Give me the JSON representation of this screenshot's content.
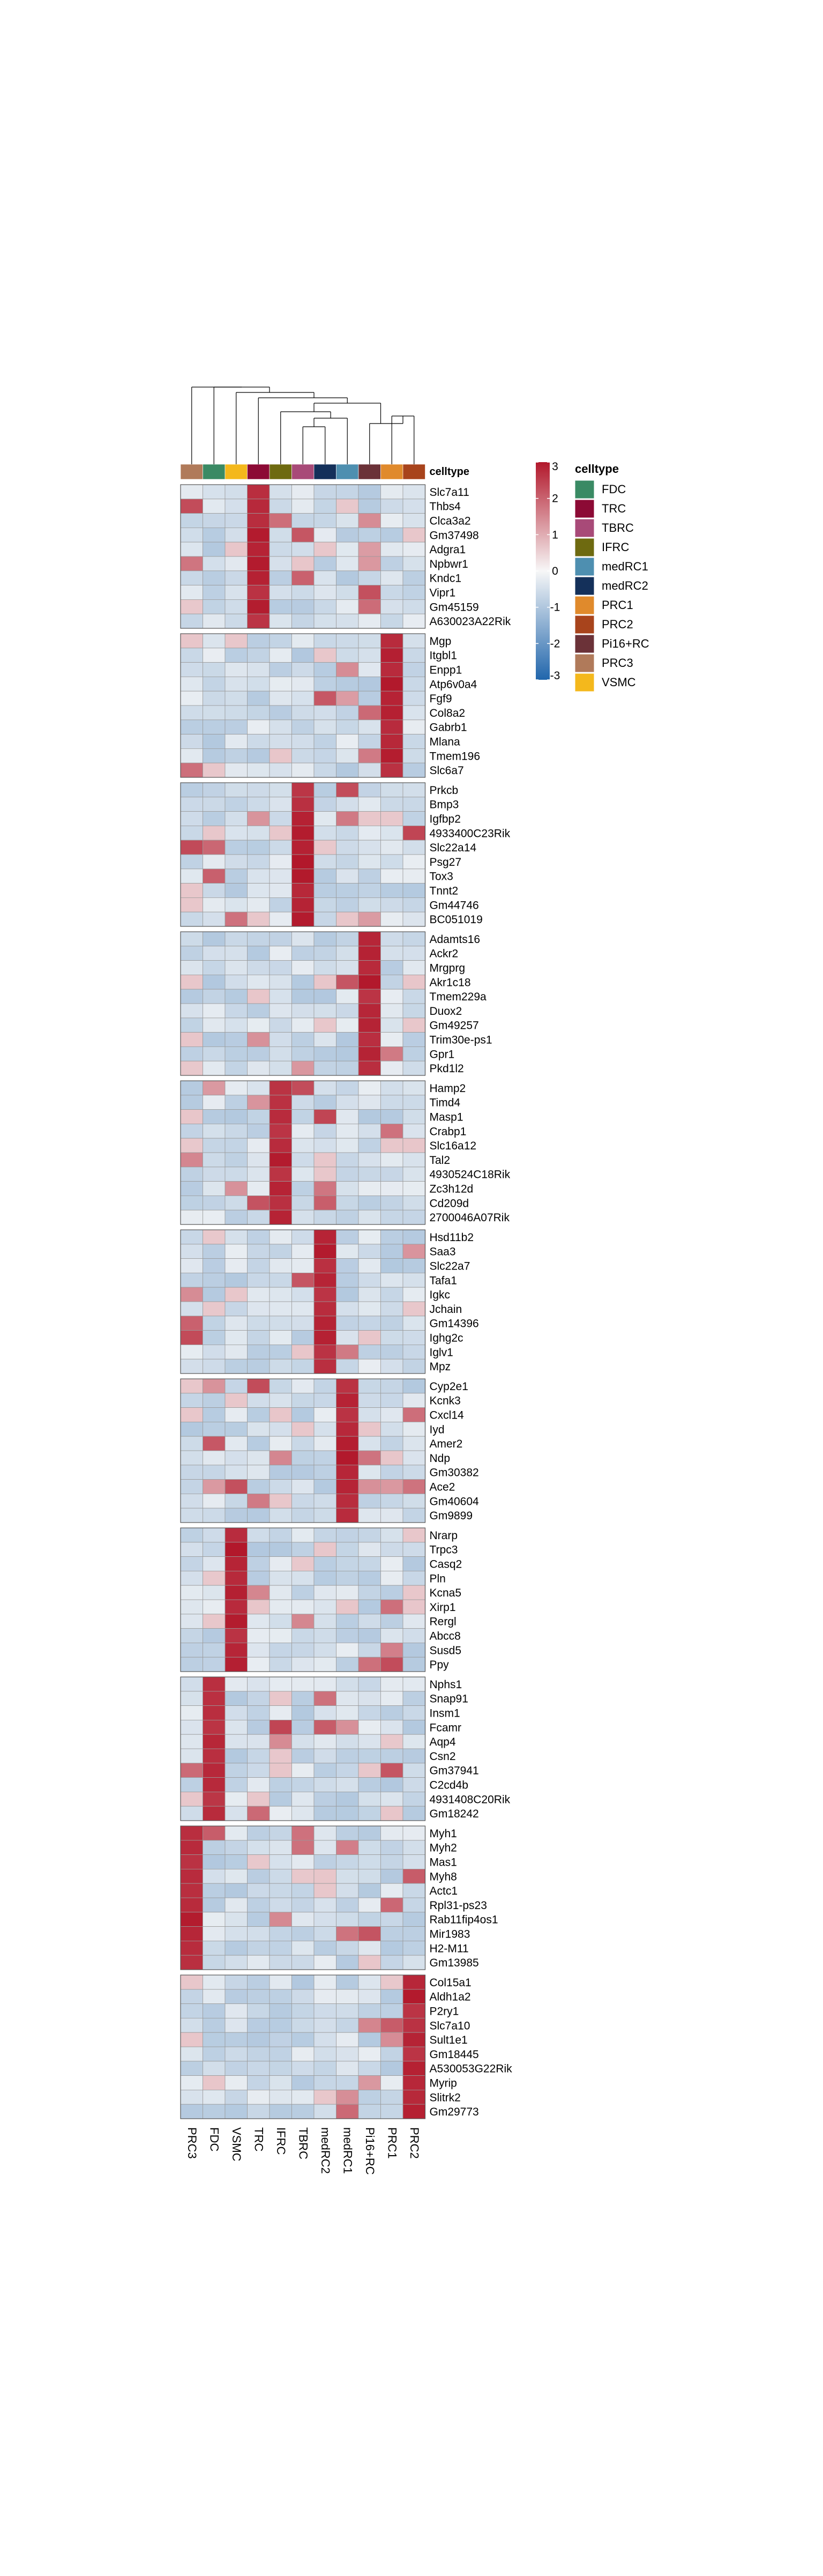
{
  "chart_data": {
    "type": "heatmap",
    "title": "",
    "annotation_label": "celltype",
    "columns": [
      "PRC3",
      "FDC",
      "VSMC",
      "TRC",
      "IFRC",
      "TBRC",
      "medRC2",
      "medRC1",
      "Pi16+RC",
      "PRC1",
      "PRC2"
    ],
    "column_colors": {
      "FDC": "#3a8a64",
      "TRC": "#8c0a35",
      "TBRC": "#a84a78",
      "IFRC": "#6e6a10",
      "medRC1": "#4e8fb0",
      "medRC2": "#14305a",
      "PRC1": "#e08a2c",
      "PRC2": "#a8441c",
      "Pi16+RC": "#6b3238",
      "PRC3": "#b07a5a",
      "VSMC": "#f4b81c"
    },
    "legend": {
      "title": "celltype",
      "items": [
        "FDC",
        "TRC",
        "TBRC",
        "IFRC",
        "medRC1",
        "medRC2",
        "PRC1",
        "PRC2",
        "Pi16+RC",
        "PRC3",
        "VSMC"
      ]
    },
    "colorbar": {
      "min": -3,
      "max": 3,
      "ticks": [
        3,
        2,
        1,
        0,
        -1,
        -2,
        -3
      ],
      "colors": [
        "#2166ac",
        "#f7f7f7",
        "#b2182b"
      ]
    },
    "dendrogram": "hierarchical clustering of columns (drawn above heatmap)",
    "groups": [
      {
        "high": "TRC",
        "genes": [
          "Slc7a11",
          "Thbs4",
          "Clca3a2",
          "Gm37498",
          "Adgra1",
          "Npbwr1",
          "Kndc1",
          "Vipr1",
          "Gm45159",
          "A630023A22Rik"
        ]
      },
      {
        "high": "PRC1",
        "genes": [
          "Mgp",
          "Itgbl1",
          "Enpp1",
          "Atp6v0a4",
          "Fgf9",
          "Col8a2",
          "Gabrb1",
          "Mlana",
          "Tmem196",
          "Slc6a7"
        ]
      },
      {
        "high": "TBRC",
        "genes": [
          "Prkcb",
          "Bmp3",
          "Igfbp2",
          "4933400C23Rik",
          "Slc22a14",
          "Psg27",
          "Tox3",
          "Tnnt2",
          "Gm44746",
          "BC051019"
        ]
      },
      {
        "high": "Pi16+RC",
        "genes": [
          "Adamts16",
          "Ackr2",
          "Mrgprg",
          "Akr1c18",
          "Tmem229a",
          "Duox2",
          "Gm49257",
          "Trim30e-ps1",
          "Gpr1",
          "Pkd1l2"
        ]
      },
      {
        "high": "IFRC",
        "genes": [
          "Hamp2",
          "Timd4",
          "Masp1",
          "Crabp1",
          "Slc16a12",
          "Tal2",
          "4930524C18Rik",
          "Zc3h12d",
          "Cd209d",
          "2700046A07Rik"
        ]
      },
      {
        "high": "medRC2",
        "genes": [
          "Hsd11b2",
          "Saa3",
          "Slc22a7",
          "Tafa1",
          "Igkc",
          "Jchain",
          "Gm14396",
          "Ighg2c",
          "Iglv1",
          "Mpz"
        ]
      },
      {
        "high": "medRC1",
        "genes": [
          "Cyp2e1",
          "Kcnk3",
          "Cxcl14",
          "Iyd",
          "Amer2",
          "Ndp",
          "Gm30382",
          "Ace2",
          "Gm40604",
          "Gm9899"
        ]
      },
      {
        "high": "VSMC",
        "genes": [
          "Nrarp",
          "Trpc3",
          "Casq2",
          "Pln",
          "Kcna5",
          "Xirp1",
          "Rergl",
          "Abcc8",
          "Susd5",
          "Ppy"
        ]
      },
      {
        "high": "FDC",
        "genes": [
          "Nphs1",
          "Snap91",
          "Insm1",
          "Fcamr",
          "Aqp4",
          "Csn2",
          "Gm37941",
          "C2cd4b",
          "4931408C20Rik",
          "Gm18242"
        ]
      },
      {
        "high": "PRC3",
        "genes": [
          "Myh1",
          "Myh2",
          "Mas1",
          "Myh8",
          "Actc1",
          "Rpl31-ps23",
          "Rab11fip4os1",
          "Mir1983",
          "H2-M11",
          "Gm13985"
        ]
      },
      {
        "high": "PRC2",
        "genes": [
          "Col15a1",
          "Aldh1a2",
          "P2ry1",
          "Slc7a10",
          "Sult1e1",
          "Gm18445",
          "A530053G22Rik",
          "Myrip",
          "Slitrk2",
          "Gm29773"
        ]
      }
    ]
  }
}
